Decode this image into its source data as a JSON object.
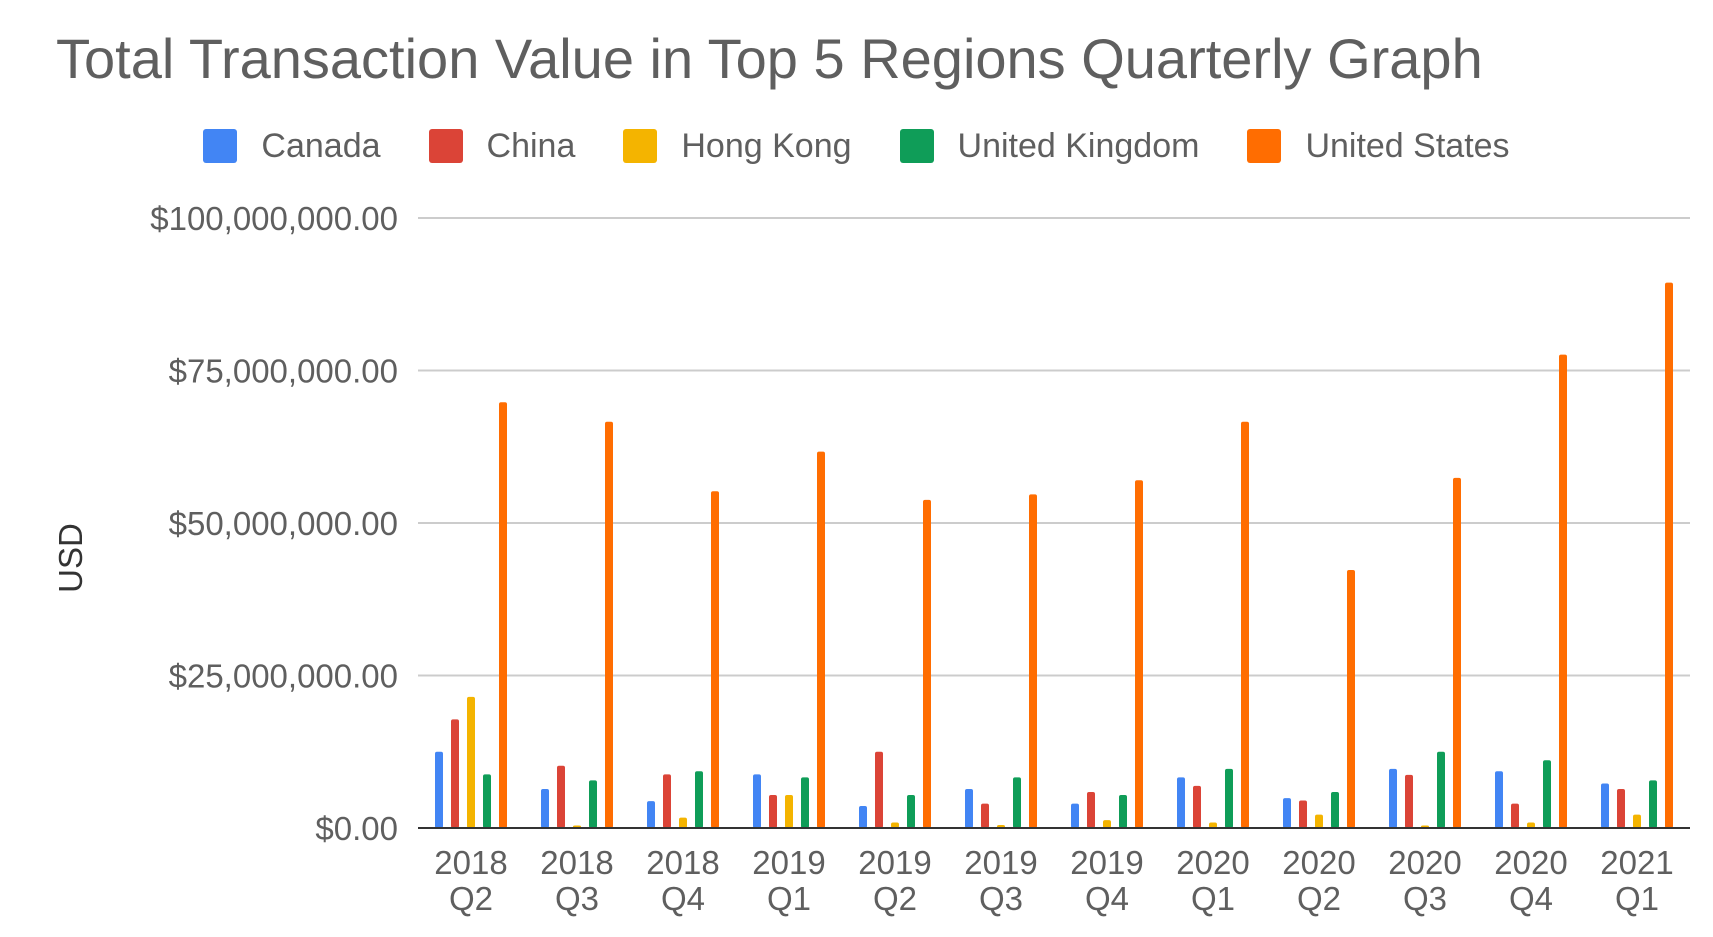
{
  "chart_data": {
    "type": "bar",
    "title": "Total Transaction Value in Top 5 Regions Quarterly Graph",
    "xlabel": "",
    "ylabel": "USD",
    "ylim": [
      0,
      100000000
    ],
    "y_ticks": [
      {
        "value": 0,
        "label": "$0.00"
      },
      {
        "value": 25000000,
        "label": "$25,000,000.00"
      },
      {
        "value": 50000000,
        "label": "$50,000,000.00"
      },
      {
        "value": 75000000,
        "label": "$75,000,000.00"
      },
      {
        "value": 100000000,
        "label": "$100,000,000.00"
      }
    ],
    "grid": true,
    "legend_position": "top",
    "categories": [
      [
        "2018",
        "Q2"
      ],
      [
        "2018",
        "Q3"
      ],
      [
        "2018",
        "Q4"
      ],
      [
        "2019",
        "Q1"
      ],
      [
        "2019",
        "Q2"
      ],
      [
        "2019",
        "Q3"
      ],
      [
        "2019",
        "Q4"
      ],
      [
        "2020",
        "Q1"
      ],
      [
        "2020",
        "Q2"
      ],
      [
        "2020",
        "Q3"
      ],
      [
        "2020",
        "Q4"
      ],
      [
        "2021",
        "Q1"
      ]
    ],
    "series": [
      {
        "name": "Canada",
        "color": "#4285f4",
        "values": [
          12500000,
          6400000,
          4400000,
          8800000,
          3600000,
          6400000,
          4000000,
          8300000,
          4900000,
          9700000,
          9300000,
          7300000
        ]
      },
      {
        "name": "China",
        "color": "#db4437",
        "values": [
          17800000,
          10200000,
          8800000,
          5400000,
          12500000,
          4000000,
          5900000,
          6900000,
          4500000,
          8700000,
          4000000,
          6400000
        ]
      },
      {
        "name": "Hong Kong",
        "color": "#f4b400",
        "values": [
          21500000,
          400000,
          1700000,
          5400000,
          900000,
          500000,
          1300000,
          900000,
          2200000,
          400000,
          900000,
          2200000
        ]
      },
      {
        "name": "United Kingdom",
        "color": "#0f9d58",
        "values": [
          8800000,
          7800000,
          9300000,
          8300000,
          5400000,
          8300000,
          5400000,
          9700000,
          5900000,
          12500000,
          11100000,
          7800000
        ]
      },
      {
        "name": "United States",
        "color": "#ff6d01",
        "values": [
          69800000,
          66600000,
          55200000,
          61700000,
          53800000,
          54700000,
          57000000,
          66600000,
          42300000,
          57400000,
          77600000,
          89400000
        ]
      }
    ]
  }
}
